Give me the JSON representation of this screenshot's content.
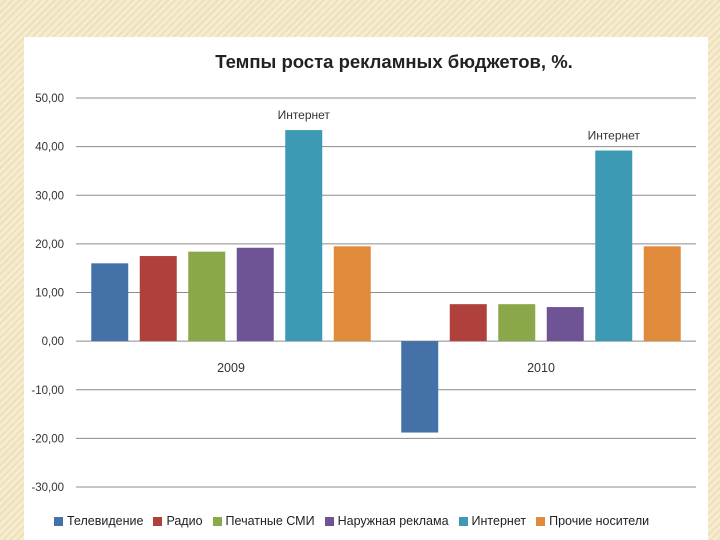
{
  "chart_data": {
    "type": "bar",
    "title": "Темпы роста рекламных бюджетов, %.",
    "categories": [
      "2009",
      "2010"
    ],
    "series": [
      {
        "name": "Телевидение",
        "color": "#4472a8",
        "values": [
          16.0,
          -18.8
        ]
      },
      {
        "name": "Радио",
        "color": "#b0403c",
        "values": [
          17.5,
          7.6
        ]
      },
      {
        "name": "Печатные СМИ",
        "color": "#8aa84a",
        "values": [
          18.4,
          7.6
        ]
      },
      {
        "name": "Наружная реклама",
        "color": "#6f5495",
        "values": [
          19.2,
          7.0
        ]
      },
      {
        "name": "Интернет",
        "color": "#3c9ab4",
        "values": [
          43.4,
          39.2
        ]
      },
      {
        "name": "Прочие носители",
        "color": "#e08a3c",
        "values": [
          19.5,
          19.5
        ]
      }
    ],
    "annotations": [
      {
        "category": "2009",
        "series": "Интернет",
        "text": "Интернет"
      },
      {
        "category": "2010",
        "series": "Интернет",
        "text": "Интернет"
      }
    ],
    "yticks": [
      "50,00",
      "40,00",
      "30,00",
      "20,00",
      "10,00",
      "0,00",
      "-10,00",
      "-20,00",
      "-30,00"
    ],
    "ylim": [
      -30,
      50
    ],
    "xlabel": "",
    "ylabel": "",
    "grid": true,
    "legend_position": "bottom"
  }
}
